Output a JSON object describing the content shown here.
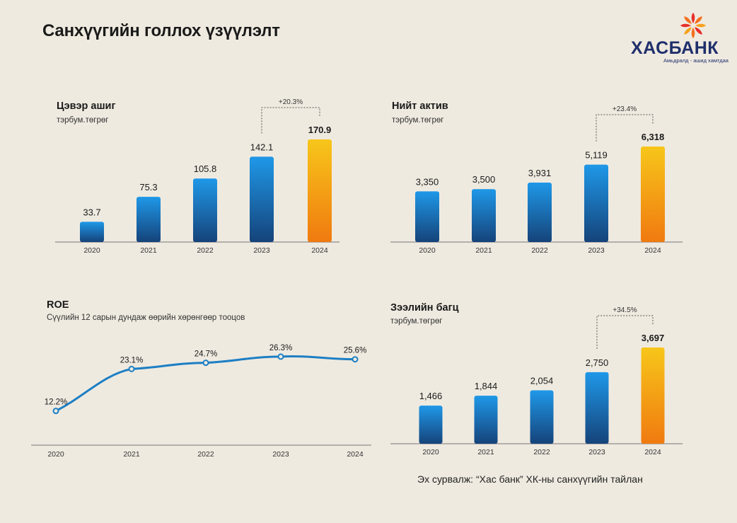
{
  "page": {
    "title": "Санхүүгийн голлох үзүүлэлт"
  },
  "logo": {
    "word": "ХАСБАНК",
    "tagline": "Амьдралд - ашид хамтдаа",
    "icon": "khasbank-logo-icon"
  },
  "source": "Эх сурвалж: “Хас банк” ХК-ны санхүүгийн тайлан",
  "colors": {
    "bar_blue_top": "#1f98e8",
    "bar_blue_bottom": "#15437a",
    "bar_gold_top": "#f7c61a",
    "bar_gold_bottom": "#f07a10",
    "line": "#1d7fc4"
  },
  "chart_data": [
    {
      "type": "bar",
      "title": "Цэвэр ашиг",
      "subtitle": "тэрбум.төгрөг",
      "categories": [
        "2020",
        "2021",
        "2022",
        "2023",
        "2024"
      ],
      "values": [
        33.7,
        75.3,
        105.8,
        142.1,
        170.9
      ],
      "value_labels": [
        "33.7",
        "75.3",
        "105.8",
        "142.1",
        "170.9"
      ],
      "highlight_index": 4,
      "growth_label": "+20.3%",
      "ylim": [
        0,
        185
      ]
    },
    {
      "type": "bar",
      "title": "Нийт актив",
      "subtitle": "тэрбум.төгрөг",
      "categories": [
        "2020",
        "2021",
        "2022",
        "2023",
        "2024"
      ],
      "values": [
        3350,
        3500,
        3931,
        5119,
        6318
      ],
      "value_labels": [
        "3,350",
        "3,500",
        "3,931",
        "5,119",
        "6,318"
      ],
      "highlight_index": 4,
      "growth_label": "+23.4%",
      "ylim": [
        0,
        6800
      ]
    },
    {
      "type": "line",
      "title": "ROE",
      "subtitle": "Сүүлийн 12 сарын дундаж өөрийн хөрөнгөөр тооцов",
      "categories": [
        "2020",
        "2021",
        "2022",
        "2023",
        "2024"
      ],
      "values": [
        12.2,
        23.1,
        24.7,
        26.3,
        25.6
      ],
      "value_labels": [
        "12.2%",
        "23.1%",
        "24.7%",
        "26.3%",
        "25.6%"
      ],
      "ylim": [
        0,
        30
      ]
    },
    {
      "type": "bar",
      "title": "Зээлийн багц",
      "subtitle": "тэрбум.төгрөг",
      "categories": [
        "2020",
        "2021",
        "2022",
        "2023",
        "2024"
      ],
      "values": [
        1466,
        1844,
        2054,
        2750,
        3697
      ],
      "value_labels": [
        "1,466",
        "1,844",
        "2,054",
        "2,750",
        "3,697"
      ],
      "highlight_index": 4,
      "growth_label": "+34.5%",
      "ylim": [
        0,
        3990
      ]
    }
  ]
}
